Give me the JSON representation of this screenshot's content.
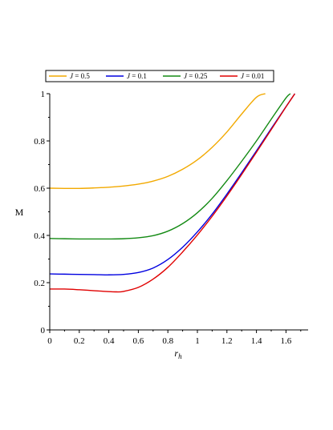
{
  "chart_data": {
    "type": "line",
    "xlabel": "r",
    "xlabel_sub": "h",
    "ylabel": "M",
    "xlim": [
      0,
      1.75
    ],
    "ylim": [
      0,
      1
    ],
    "x_ticks": [
      0,
      0.2,
      0.4,
      0.6,
      0.8,
      1,
      1.2,
      1.4,
      1.6
    ],
    "x_tick_labels": [
      "0",
      "0.2",
      "0.4",
      "0.6",
      "0.8",
      "1",
      "1.2",
      "1.4",
      "1.6"
    ],
    "y_ticks": [
      0,
      0.2,
      0.4,
      0.6,
      0.8,
      1
    ],
    "y_tick_labels": [
      "0",
      "0.2",
      "0.4",
      "0.6",
      "0.8",
      "1"
    ],
    "grid": false,
    "legend_position": "top",
    "series": [
      {
        "name": "J = 0.5",
        "legend_var": "J",
        "legend_value": "= 0.5",
        "color": "#f2a900",
        "x": [
          0,
          0.1,
          0.2,
          0.3,
          0.4,
          0.5,
          0.6,
          0.7,
          0.8,
          0.9,
          1.0,
          1.1,
          1.2,
          1.3,
          1.4,
          1.46
        ],
        "y": [
          0.6,
          0.599,
          0.599,
          0.601,
          0.604,
          0.609,
          0.617,
          0.63,
          0.65,
          0.68,
          0.72,
          0.773,
          0.838,
          0.914,
          0.985,
          1.0
        ]
      },
      {
        "name": "J = 0.1",
        "legend_var": "J",
        "legend_value": "= 0.1",
        "color": "#0000e0",
        "x": [
          0,
          0.1,
          0.2,
          0.3,
          0.4,
          0.5,
          0.6,
          0.7,
          0.8,
          0.9,
          1.0,
          1.1,
          1.2,
          1.3,
          1.4,
          1.5,
          1.6,
          1.66
        ],
        "y": [
          0.237,
          0.236,
          0.235,
          0.234,
          0.233,
          0.235,
          0.243,
          0.262,
          0.298,
          0.35,
          0.415,
          0.49,
          0.575,
          0.665,
          0.758,
          0.852,
          0.945,
          1.0
        ]
      },
      {
        "name": "J = 0.25",
        "legend_var": "J",
        "legend_value": "= 0.25",
        "color": "#138a13",
        "x": [
          0,
          0.1,
          0.2,
          0.3,
          0.4,
          0.5,
          0.6,
          0.7,
          0.8,
          0.9,
          1.0,
          1.1,
          1.2,
          1.3,
          1.4,
          1.5,
          1.6,
          1.63
        ],
        "y": [
          0.387,
          0.386,
          0.385,
          0.385,
          0.385,
          0.386,
          0.39,
          0.399,
          0.418,
          0.45,
          0.496,
          0.557,
          0.632,
          0.714,
          0.8,
          0.892,
          0.982,
          1.0
        ]
      },
      {
        "name": "J = 0.01",
        "legend_var": "J",
        "legend_value": "= 0.01",
        "color": "#e00000",
        "x": [
          0,
          0.1,
          0.2,
          0.3,
          0.4,
          0.45,
          0.5,
          0.6,
          0.7,
          0.8,
          0.9,
          1.0,
          1.1,
          1.2,
          1.3,
          1.4,
          1.5,
          1.6,
          1.66
        ],
        "y": [
          0.173,
          0.173,
          0.17,
          0.166,
          0.162,
          0.161,
          0.163,
          0.18,
          0.215,
          0.265,
          0.33,
          0.402,
          0.481,
          0.567,
          0.658,
          0.752,
          0.848,
          0.944,
          1.0
        ]
      }
    ]
  }
}
